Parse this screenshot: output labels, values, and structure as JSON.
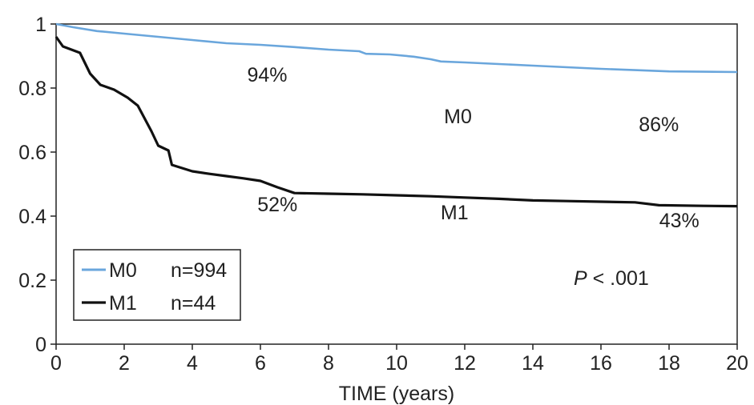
{
  "chart_data": {
    "type": "line",
    "xlabel": "TIME (years)",
    "ylabel": "",
    "xlim": [
      0,
      20
    ],
    "ylim": [
      0,
      1
    ],
    "x_ticks": [
      "0",
      "2",
      "4",
      "6",
      "8",
      "10",
      "12",
      "14",
      "16",
      "18",
      "20"
    ],
    "y_ticks": [
      "0",
      "0.2",
      "0.4",
      "0.6",
      "0.8",
      "1"
    ],
    "legend_position": "bottom-left",
    "series": [
      {
        "name": "M0",
        "n_label": "n=994",
        "color": "#6aa6dc",
        "points": [
          [
            0,
            1.0
          ],
          [
            0.5,
            0.99
          ],
          [
            1.2,
            0.978
          ],
          [
            2,
            0.97
          ],
          [
            3,
            0.96
          ],
          [
            4,
            0.95
          ],
          [
            5,
            0.94
          ],
          [
            6,
            0.935
          ],
          [
            7,
            0.928
          ],
          [
            8,
            0.92
          ],
          [
            8.9,
            0.915
          ],
          [
            9.1,
            0.907
          ],
          [
            9.8,
            0.905
          ],
          [
            10.5,
            0.898
          ],
          [
            11,
            0.89
          ],
          [
            11.3,
            0.883
          ],
          [
            12,
            0.88
          ],
          [
            13,
            0.875
          ],
          [
            14,
            0.87
          ],
          [
            15,
            0.865
          ],
          [
            16,
            0.86
          ],
          [
            17,
            0.856
          ],
          [
            18,
            0.852
          ],
          [
            19,
            0.851
          ],
          [
            20,
            0.85
          ]
        ]
      },
      {
        "name": "M1",
        "n_label": "n=44",
        "color": "#111111",
        "points": [
          [
            0,
            0.96
          ],
          [
            0.2,
            0.93
          ],
          [
            0.7,
            0.91
          ],
          [
            1.0,
            0.845
          ],
          [
            1.3,
            0.81
          ],
          [
            1.7,
            0.795
          ],
          [
            2.1,
            0.77
          ],
          [
            2.4,
            0.745
          ],
          [
            2.8,
            0.665
          ],
          [
            3.0,
            0.62
          ],
          [
            3.3,
            0.605
          ],
          [
            3.4,
            0.56
          ],
          [
            4,
            0.54
          ],
          [
            4.5,
            0.532
          ],
          [
            5,
            0.525
          ],
          [
            5.5,
            0.518
          ],
          [
            6,
            0.51
          ],
          [
            6.5,
            0.49
          ],
          [
            7,
            0.472
          ],
          [
            8,
            0.47
          ],
          [
            9,
            0.468
          ],
          [
            10,
            0.465
          ],
          [
            11,
            0.462
          ],
          [
            12,
            0.458
          ],
          [
            13,
            0.454
          ],
          [
            14,
            0.449
          ],
          [
            15,
            0.447
          ],
          [
            16,
            0.445
          ],
          [
            17,
            0.443
          ],
          [
            17.7,
            0.434
          ],
          [
            19,
            0.432
          ],
          [
            20,
            0.431
          ]
        ]
      }
    ],
    "annotations": [
      {
        "text": "94%",
        "x": 6.2,
        "y": 0.82
      },
      {
        "text": "M0",
        "x": 11.8,
        "y": 0.69
      },
      {
        "text": "86%",
        "x": 17.7,
        "y": 0.665
      },
      {
        "text": "52%",
        "x": 6.5,
        "y": 0.415
      },
      {
        "text": "M1",
        "x": 11.7,
        "y": 0.39
      },
      {
        "text": "43%",
        "x": 18.3,
        "y": 0.365
      }
    ],
    "pvalue_label": "P",
    "pvalue_rest": " < .001",
    "pvalue_pos": {
      "x": 15.2,
      "y": 0.185
    }
  }
}
